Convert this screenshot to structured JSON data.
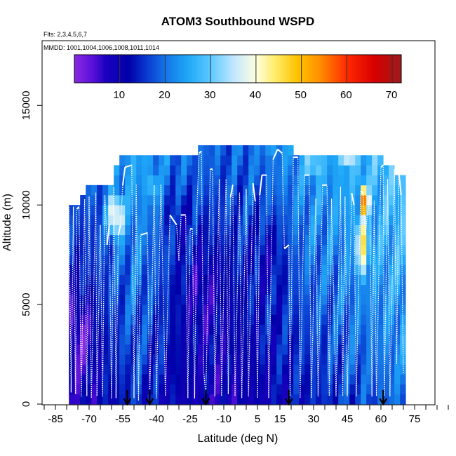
{
  "chart_data": {
    "type": "heatmap",
    "title": "ATOM3 Southbound WSPD",
    "flights_note": "Flts: 2,3,4,5,6,7",
    "dates_note": "MMDD: 1001,1004,1006,1008,1011,1014",
    "xlabel": "Latitude (deg N)",
    "ylabel": "Altitude (m)",
    "xlim": [
      -90,
      90
    ],
    "ylim": [
      0,
      17500
    ],
    "x_ticks": [
      -85,
      -70,
      -55,
      -40,
      -25,
      -10,
      5,
      15,
      30,
      45,
      60,
      75
    ],
    "y_ticks": [
      0,
      5000,
      10000,
      15000
    ],
    "colorbar": {
      "range": [
        0,
        72
      ],
      "ticks": [
        10,
        20,
        30,
        40,
        50,
        60,
        70
      ],
      "stops": [
        {
          "v": 0,
          "c": "#8a2be2"
        },
        {
          "v": 4,
          "c": "#5a10d8"
        },
        {
          "v": 7,
          "c": "#1a00c0"
        },
        {
          "v": 12,
          "c": "#0000a8"
        },
        {
          "v": 16,
          "c": "#0a3ad0"
        },
        {
          "v": 20,
          "c": "#1474e6"
        },
        {
          "v": 25,
          "c": "#1ea8f8"
        },
        {
          "v": 30,
          "c": "#5cc8ff"
        },
        {
          "v": 35,
          "c": "#bfe6ff"
        },
        {
          "v": 40,
          "c": "#ffffe0"
        },
        {
          "v": 44,
          "c": "#ffee70"
        },
        {
          "v": 49,
          "c": "#ffc400"
        },
        {
          "v": 54,
          "c": "#ff9000"
        },
        {
          "v": 60,
          "c": "#ff2a00"
        },
        {
          "v": 66,
          "c": "#d80000"
        },
        {
          "v": 72,
          "c": "#9c1a1a"
        }
      ]
    },
    "section": {
      "lat_min": -79,
      "lat_max": 71,
      "lat_step": 2.5,
      "alt_step": 500,
      "top_profile": [
        [
          -79,
          10000
        ],
        [
          -74,
          10000
        ],
        [
          -72,
          10500
        ],
        [
          -67,
          11000
        ],
        [
          -60,
          11000
        ],
        [
          -58,
          11500
        ],
        [
          -54,
          12500
        ],
        [
          -49,
          12500
        ],
        [
          -21,
          12500
        ],
        [
          -20,
          13000
        ],
        [
          -14,
          13000
        ],
        [
          4,
          13000
        ],
        [
          19,
          13000
        ],
        [
          20,
          12500
        ],
        [
          60,
          12500
        ],
        [
          61,
          12000
        ],
        [
          66,
          12000
        ],
        [
          67,
          11500
        ],
        [
          71,
          11500
        ]
      ],
      "base_wind": [
        [
          -79,
          8
        ],
        [
          -70,
          9
        ],
        [
          -60,
          12
        ],
        [
          -50,
          15
        ],
        [
          -40,
          12
        ],
        [
          -30,
          10
        ],
        [
          -20,
          9
        ],
        [
          -10,
          8
        ],
        [
          0,
          9
        ],
        [
          10,
          10
        ],
        [
          20,
          12
        ],
        [
          30,
          14
        ],
        [
          40,
          15
        ],
        [
          50,
          17
        ],
        [
          60,
          18
        ],
        [
          70,
          20
        ]
      ],
      "jets": [
        {
          "lat": 53,
          "alt": 10200,
          "peak": 62,
          "lat_w": 2.2,
          "alt_w": 1300
        },
        {
          "lat": 52,
          "alt": 8000,
          "peak": 44,
          "lat_w": 4.5,
          "alt_w": 2500
        },
        {
          "lat": -58,
          "alt": 9500,
          "peak": 42,
          "lat_w": 6,
          "alt_w": 1700
        },
        {
          "lat": -42,
          "alt": 11000,
          "peak": 28,
          "lat_w": 8,
          "alt_w": 1800
        },
        {
          "lat": 30,
          "alt": 12000,
          "peak": 33,
          "lat_w": 8,
          "alt_w": 1500
        },
        {
          "lat": 45,
          "alt": 12300,
          "peak": 38,
          "lat_w": 6,
          "alt_w": 900
        },
        {
          "lat": 12,
          "alt": 12800,
          "peak": 24,
          "lat_w": 10,
          "alt_w": 700
        }
      ],
      "calm": [
        {
          "lat": -74,
          "alt": 3500,
          "amp": 8,
          "lat_w": 6,
          "alt_w": 1800
        },
        {
          "lat": -20,
          "alt": 6000,
          "amp": 6,
          "lat_w": 10,
          "alt_w": 2500
        },
        {
          "lat": -30,
          "alt": 9500,
          "amp": 5,
          "lat_w": 6,
          "alt_w": 1500
        },
        {
          "lat": 10,
          "alt": 7500,
          "amp": 5,
          "lat_w": 8,
          "alt_w": 2000
        }
      ],
      "arrows_lat": [
        -53,
        -43,
        -18,
        19,
        61
      ]
    },
    "flight_track": [
      [
        -79,
        9900
      ],
      [
        -78,
        600
      ],
      [
        -77,
        9900
      ],
      [
        -76,
        500
      ],
      [
        -75.5,
        9800
      ],
      [
        -74.5,
        9900
      ],
      [
        -73.5,
        400
      ],
      [
        -72,
        10300
      ],
      [
        -71,
        400
      ],
      [
        -70,
        10400
      ],
      [
        -69,
        300
      ],
      [
        -67,
        10600
      ],
      [
        -66.5,
        400
      ],
      [
        -65,
        9000
      ],
      [
        -64,
        400
      ],
      [
        -63,
        10500
      ],
      [
        -62,
        8000
      ],
      [
        -61,
        9000
      ],
      [
        -60,
        300
      ],
      [
        -59,
        10900
      ],
      [
        -58,
        300
      ],
      [
        -57,
        8500
      ],
      [
        -56,
        9000
      ],
      [
        -55,
        11000
      ],
      [
        -54,
        11900
      ],
      [
        -51,
        12000
      ],
      [
        -50,
        300
      ],
      [
        -49,
        11000
      ],
      [
        -48,
        200
      ],
      [
        -47,
        8500
      ],
      [
        -44,
        8600
      ],
      [
        -43,
        200
      ],
      [
        -41,
        11000
      ],
      [
        -40,
        300
      ],
      [
        -38,
        11000
      ],
      [
        -36,
        400
      ],
      [
        -34,
        9500
      ],
      [
        -31,
        9000
      ],
      [
        -30,
        7200
      ],
      [
        -29,
        9500
      ],
      [
        -27,
        9500
      ],
      [
        -26,
        300
      ],
      [
        -25,
        8800
      ],
      [
        -24,
        8800
      ],
      [
        -23,
        300
      ],
      [
        -22,
        9800
      ],
      [
        -21,
        12600
      ],
      [
        -20,
        12700
      ],
      [
        -19,
        1700
      ],
      [
        -18,
        400
      ],
      [
        -16,
        11800
      ],
      [
        -15,
        11800
      ],
      [
        -14,
        400
      ],
      [
        -12,
        11300
      ],
      [
        -11,
        400
      ],
      [
        -9,
        11300
      ],
      [
        -8,
        500
      ],
      [
        -7,
        10400
      ],
      [
        -6,
        11000
      ],
      [
        -5,
        400
      ],
      [
        -3,
        10600
      ],
      [
        -2,
        300
      ],
      [
        0,
        10800
      ],
      [
        1,
        400
      ],
      [
        3,
        11100
      ],
      [
        4,
        10200
      ],
      [
        5,
        300
      ],
      [
        6,
        10500
      ],
      [
        7,
        11500
      ],
      [
        9,
        11500
      ],
      [
        10,
        300
      ],
      [
        12,
        12300
      ],
      [
        14,
        12800
      ],
      [
        16,
        12600
      ],
      [
        17,
        7800
      ],
      [
        19,
        8000
      ],
      [
        19.5,
        400
      ],
      [
        21,
        12400
      ],
      [
        23,
        12400
      ],
      [
        24,
        300
      ],
      [
        26,
        11500
      ],
      [
        28,
        11500
      ],
      [
        29,
        300
      ],
      [
        31,
        10300
      ],
      [
        32,
        400
      ],
      [
        34,
        11000
      ],
      [
        36,
        11000
      ],
      [
        37,
        400
      ],
      [
        38,
        10300
      ],
      [
        40,
        400
      ],
      [
        42,
        10900
      ],
      [
        43,
        400
      ],
      [
        44,
        10400
      ],
      [
        45,
        400
      ],
      [
        47,
        10600
      ],
      [
        48,
        10000
      ],
      [
        49,
        400
      ],
      [
        51,
        10700
      ],
      [
        52,
        10600
      ],
      [
        53,
        8500
      ],
      [
        55,
        10500
      ],
      [
        56,
        400
      ],
      [
        57,
        10200
      ],
      [
        58,
        400
      ],
      [
        60,
        11900
      ],
      [
        61,
        12000
      ],
      [
        61.5,
        400
      ],
      [
        63,
        11300
      ],
      [
        64,
        400
      ],
      [
        66,
        11800
      ],
      [
        67,
        2000
      ],
      [
        68,
        11600
      ],
      [
        69,
        10500
      ],
      [
        70,
        1500
      ]
    ]
  }
}
